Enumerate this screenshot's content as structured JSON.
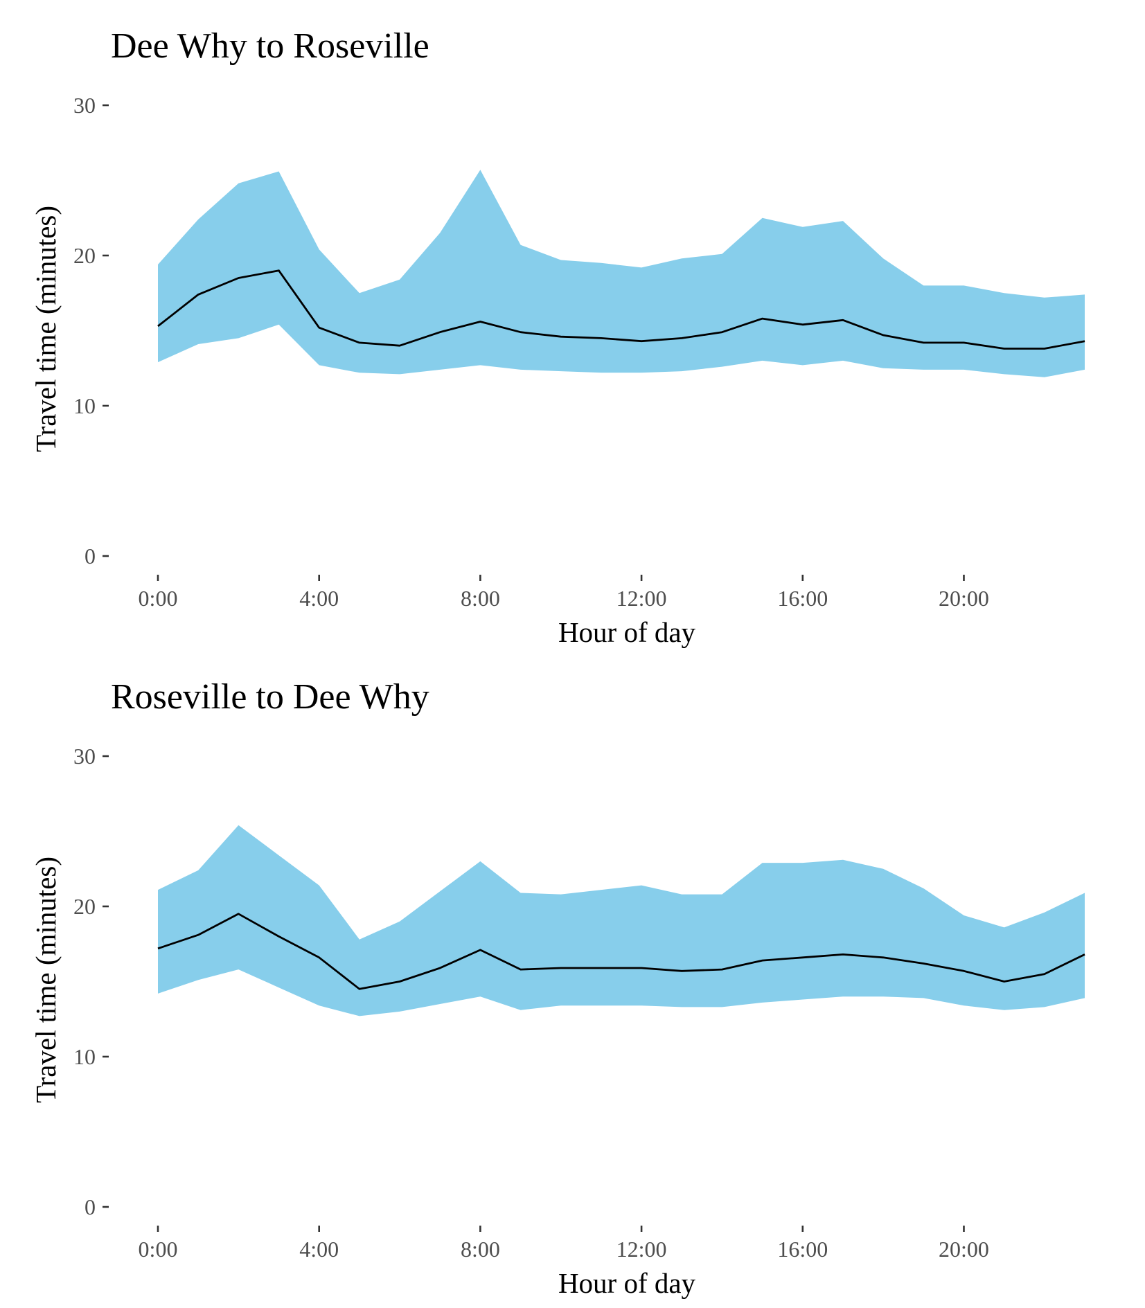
{
  "colors": {
    "band": "#87CEEB",
    "line": "#000000",
    "tick_text": "#4d4d4d",
    "background": "#ffffff"
  },
  "chart_data": [
    {
      "type": "area",
      "title": "Dee Why to Roseville",
      "xlabel": "Hour of day",
      "ylabel": "Travel time (minutes)",
      "x": [
        0,
        1,
        2,
        3,
        4,
        5,
        6,
        7,
        8,
        9,
        10,
        11,
        12,
        13,
        14,
        15,
        16,
        17,
        18,
        19,
        20,
        21,
        22,
        23
      ],
      "xticks": [
        0,
        4,
        8,
        12,
        16,
        20
      ],
      "xtick_labels": [
        "0:00",
        "4:00",
        "8:00",
        "12:00",
        "16:00",
        "20:00"
      ],
      "yticks": [
        0,
        10,
        20,
        30
      ],
      "ytick_labels": [
        "0",
        "10",
        "20",
        "30"
      ],
      "ylim": [
        0,
        30
      ],
      "xlim": [
        0,
        23
      ],
      "grid": false,
      "series": [
        {
          "kind": "ribbon",
          "upper": [
            19.4,
            22.4,
            24.8,
            25.6,
            20.4,
            17.5,
            18.4,
            21.5,
            25.7,
            20.7,
            19.7,
            19.5,
            19.2,
            19.8,
            20.1,
            22.5,
            21.9,
            22.3,
            19.8,
            18.0,
            18.0,
            17.5,
            17.2,
            17.4
          ],
          "lower": [
            12.9,
            14.1,
            14.5,
            15.4,
            12.7,
            12.2,
            12.1,
            12.4,
            12.7,
            12.4,
            12.3,
            12.2,
            12.2,
            12.3,
            12.6,
            13.0,
            12.7,
            13.0,
            12.5,
            12.4,
            12.4,
            12.1,
            11.9,
            12.4
          ]
        },
        {
          "kind": "line",
          "values": [
            15.3,
            17.4,
            18.5,
            19.0,
            15.2,
            14.2,
            14.0,
            14.9,
            15.6,
            14.9,
            14.6,
            14.5,
            14.3,
            14.5,
            14.9,
            15.8,
            15.4,
            15.7,
            14.7,
            14.2,
            14.2,
            13.8,
            13.8,
            14.3
          ]
        }
      ]
    },
    {
      "type": "area",
      "title": "Roseville to Dee Why",
      "xlabel": "Hour of day",
      "ylabel": "Travel time (minutes)",
      "x": [
        0,
        1,
        2,
        3,
        4,
        5,
        6,
        7,
        8,
        9,
        10,
        11,
        12,
        13,
        14,
        15,
        16,
        17,
        18,
        19,
        20,
        21,
        22,
        23
      ],
      "xticks": [
        0,
        4,
        8,
        12,
        16,
        20
      ],
      "xtick_labels": [
        "0:00",
        "4:00",
        "8:00",
        "12:00",
        "16:00",
        "20:00"
      ],
      "yticks": [
        0,
        10,
        20,
        30
      ],
      "ytick_labels": [
        "0",
        "10",
        "20",
        "30"
      ],
      "ylim": [
        0,
        30
      ],
      "xlim": [
        0,
        23
      ],
      "grid": false,
      "series": [
        {
          "kind": "ribbon",
          "upper": [
            21.1,
            22.4,
            25.4,
            23.4,
            21.4,
            17.8,
            19.0,
            21.0,
            23.0,
            20.9,
            20.8,
            21.1,
            21.4,
            20.8,
            20.8,
            22.9,
            22.9,
            23.1,
            22.5,
            21.2,
            19.4,
            18.6,
            19.6,
            20.9
          ],
          "lower": [
            14.2,
            15.1,
            15.8,
            14.6,
            13.4,
            12.7,
            13.0,
            13.5,
            14.0,
            13.1,
            13.4,
            13.4,
            13.4,
            13.3,
            13.3,
            13.6,
            13.8,
            14.0,
            14.0,
            13.9,
            13.4,
            13.1,
            13.3,
            13.9
          ],
          "note": ""
        },
        {
          "kind": "line",
          "values": [
            17.2,
            18.1,
            19.5,
            18.0,
            16.6,
            14.5,
            15.0,
            15.9,
            17.1,
            15.8,
            15.9,
            15.9,
            15.9,
            15.7,
            15.8,
            16.4,
            16.6,
            16.8,
            16.6,
            16.2,
            15.7,
            15.0,
            15.5,
            16.8
          ]
        }
      ]
    }
  ]
}
